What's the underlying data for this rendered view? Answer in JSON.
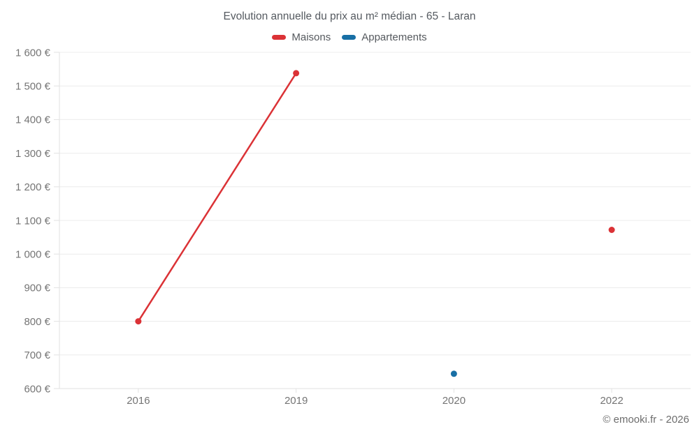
{
  "chart_data": {
    "type": "line",
    "title": "Evolution annuelle du prix au m² médian - 65 - Laran",
    "categories": [
      "2016",
      "2019",
      "2020",
      "2022"
    ],
    "series": [
      {
        "name": "Maisons",
        "color": "#db3236",
        "values": [
          800,
          1538,
          null,
          1072
        ]
      },
      {
        "name": "Appartements",
        "color": "#186fa5",
        "values": [
          null,
          null,
          644,
          null
        ]
      }
    ],
    "ylim": [
      600,
      1600
    ],
    "ytick_step": 100,
    "ytick_suffix": " €",
    "grid": "horizontal",
    "legend_position": "top",
    "xlabel": "",
    "ylabel": ""
  },
  "colors": {
    "gridline": "#ececec",
    "axis_line": "#e2e2e2",
    "tick_label": "#757575"
  },
  "footer": {
    "copyright": "© emooki.fr - 2026"
  }
}
